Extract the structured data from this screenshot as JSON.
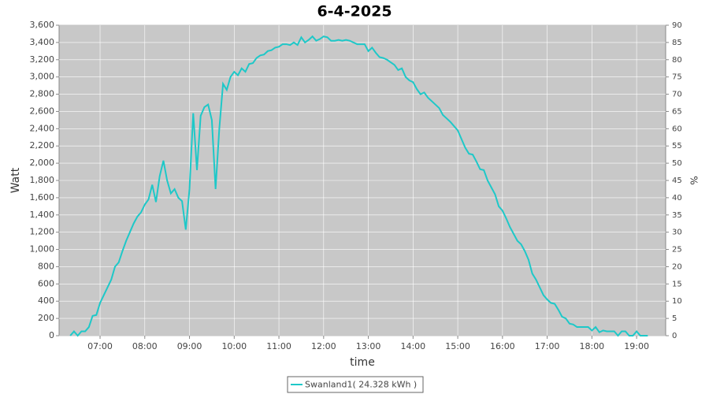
{
  "chart_data": {
    "type": "line",
    "title": "6-4-2025",
    "x_label": "time",
    "y_label": "Watt",
    "y2_label": "%",
    "x": [
      "06:20",
      "06:25",
      "06:30",
      "06:35",
      "06:40",
      "06:45",
      "06:50",
      "06:55",
      "07:00",
      "07:05",
      "07:10",
      "07:15",
      "07:20",
      "07:25",
      "07:30",
      "07:35",
      "07:40",
      "07:45",
      "07:50",
      "07:55",
      "08:00",
      "08:05",
      "08:10",
      "08:15",
      "08:20",
      "08:25",
      "08:30",
      "08:35",
      "08:40",
      "08:45",
      "08:50",
      "08:55",
      "09:00",
      "09:05",
      "09:10",
      "09:15",
      "09:20",
      "09:25",
      "09:30",
      "09:35",
      "09:40",
      "09:45",
      "09:50",
      "09:55",
      "10:00",
      "10:05",
      "10:10",
      "10:15",
      "10:20",
      "10:25",
      "10:30",
      "10:35",
      "10:40",
      "10:45",
      "10:50",
      "10:55",
      "11:00",
      "11:05",
      "11:10",
      "11:15",
      "11:20",
      "11:25",
      "11:30",
      "11:35",
      "11:40",
      "11:45",
      "11:50",
      "11:55",
      "12:00",
      "12:05",
      "12:10",
      "12:15",
      "12:20",
      "12:25",
      "12:30",
      "12:35",
      "12:40",
      "12:45",
      "12:50",
      "12:55",
      "13:00",
      "13:05",
      "13:10",
      "13:15",
      "13:20",
      "13:25",
      "13:30",
      "13:35",
      "13:40",
      "13:45",
      "13:50",
      "13:55",
      "14:00",
      "14:05",
      "14:10",
      "14:15",
      "14:20",
      "14:25",
      "14:30",
      "14:35",
      "14:40",
      "14:45",
      "14:50",
      "14:55",
      "15:00",
      "15:05",
      "15:10",
      "15:15",
      "15:20",
      "15:25",
      "15:30",
      "15:35",
      "15:40",
      "15:45",
      "15:50",
      "15:55",
      "16:00",
      "16:05",
      "16:10",
      "16:15",
      "16:20",
      "16:25",
      "16:30",
      "16:35",
      "16:40",
      "16:45",
      "16:50",
      "16:55",
      "17:00",
      "17:05",
      "17:10",
      "17:15",
      "17:20",
      "17:25",
      "17:30",
      "17:35",
      "17:40",
      "17:45",
      "17:50",
      "17:55",
      "18:00",
      "18:05",
      "18:10",
      "18:15",
      "18:20",
      "18:25",
      "18:30",
      "18:35",
      "18:40",
      "18:45",
      "18:50",
      "18:55",
      "19:00",
      "19:05",
      "19:10",
      "19:15"
    ],
    "series": [
      {
        "name": "Swanland1( 24.328 kWh )",
        "color": "#1ec8c8",
        "values": [
          0,
          50,
          0,
          50,
          50,
          100,
          230,
          240,
          380,
          470,
          560,
          650,
          800,
          850,
          980,
          1100,
          1200,
          1300,
          1380,
          1430,
          1520,
          1580,
          1750,
          1550,
          1850,
          2030,
          1800,
          1650,
          1700,
          1600,
          1560,
          1230,
          1700,
          2580,
          1920,
          2550,
          2650,
          2680,
          2500,
          1700,
          2400,
          2920,
          2850,
          3000,
          3060,
          3020,
          3100,
          3060,
          3150,
          3160,
          3220,
          3250,
          3260,
          3300,
          3310,
          3340,
          3350,
          3380,
          3380,
          3370,
          3400,
          3370,
          3460,
          3400,
          3430,
          3470,
          3420,
          3440,
          3470,
          3460,
          3420,
          3420,
          3430,
          3420,
          3430,
          3420,
          3400,
          3380,
          3380,
          3380,
          3300,
          3340,
          3280,
          3230,
          3220,
          3200,
          3170,
          3140,
          3080,
          3100,
          3000,
          2960,
          2940,
          2860,
          2800,
          2820,
          2760,
          2720,
          2680,
          2640,
          2560,
          2520,
          2480,
          2430,
          2380,
          2280,
          2180,
          2110,
          2100,
          2020,
          1930,
          1920,
          1800,
          1720,
          1640,
          1500,
          1450,
          1360,
          1260,
          1180,
          1100,
          1060,
          980,
          880,
          720,
          650,
          560,
          470,
          420,
          380,
          370,
          300,
          220,
          200,
          140,
          130,
          100,
          100,
          100,
          100,
          60,
          100,
          40,
          60,
          50,
          50,
          50,
          0,
          50,
          50,
          0,
          0,
          50,
          0,
          0,
          0
        ]
      }
    ],
    "xlim": [
      "06:05",
      "19:39"
    ],
    "xticks": [
      "07:00",
      "08:00",
      "09:00",
      "10:00",
      "11:00",
      "12:00",
      "13:00",
      "14:00",
      "15:00",
      "16:00",
      "17:00",
      "18:00",
      "19:00"
    ],
    "ylim": [
      0,
      3600
    ],
    "yticks": [
      0,
      200,
      400,
      600,
      800,
      {
        "value": 1000,
        "label": "1,000"
      },
      {
        "value": 1200,
        "label": "1,200"
      },
      {
        "value": 1400,
        "label": "1,400"
      },
      {
        "value": 1600,
        "label": "1,600"
      },
      {
        "value": 1800,
        "label": "1,800"
      },
      {
        "value": 2000,
        "label": "2,000"
      },
      {
        "value": 2200,
        "label": "2,200"
      },
      {
        "value": 2400,
        "label": "2,400"
      },
      {
        "value": 2600,
        "label": "2,600"
      },
      {
        "value": 2800,
        "label": "2,800"
      },
      {
        "value": 3000,
        "label": "3,000"
      },
      {
        "value": 3200,
        "label": "3,200"
      },
      {
        "value": 3400,
        "label": "3,400"
      },
      {
        "value": 3600,
        "label": "3,600"
      }
    ],
    "y2lim": [
      0,
      90
    ],
    "y2ticks": [
      0,
      5,
      10,
      15,
      20,
      25,
      30,
      35,
      40,
      45,
      50,
      55,
      60,
      65,
      70,
      75,
      80,
      85,
      90
    ],
    "grid": true,
    "plot_background": "#c8c8c8"
  }
}
